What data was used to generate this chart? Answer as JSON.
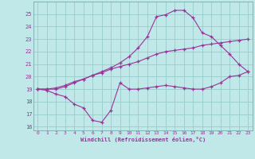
{
  "xlabel": "Windchill (Refroidissement éolien,°C)",
  "background_color": "#c0e8e8",
  "grid_color": "#98cccc",
  "line_color": "#993399",
  "xlim": [
    -0.5,
    23.5
  ],
  "ylim": [
    15.7,
    26.0
  ],
  "yticks": [
    16,
    17,
    18,
    19,
    20,
    21,
    22,
    23,
    24,
    25
  ],
  "xticks": [
    0,
    1,
    2,
    3,
    4,
    5,
    6,
    7,
    8,
    9,
    10,
    11,
    12,
    13,
    14,
    15,
    16,
    17,
    18,
    19,
    20,
    21,
    22,
    23
  ],
  "line1_x": [
    0,
    1,
    2,
    3,
    4,
    5,
    6,
    7,
    8,
    9,
    10,
    11,
    12,
    13,
    14,
    15,
    16,
    17,
    18,
    19,
    20,
    21,
    22,
    23
  ],
  "line1_y": [
    19.0,
    18.9,
    18.6,
    18.4,
    17.8,
    17.5,
    16.5,
    16.35,
    17.3,
    19.5,
    19.0,
    19.0,
    19.1,
    19.2,
    19.3,
    19.2,
    19.1,
    19.0,
    19.0,
    19.2,
    19.5,
    20.0,
    20.1,
    20.4
  ],
  "line2_x": [
    0,
    1,
    2,
    3,
    4,
    5,
    6,
    7,
    8,
    9,
    10,
    11,
    12,
    13,
    14,
    15,
    16,
    17,
    18,
    19,
    20,
    21,
    22,
    23
  ],
  "line2_y": [
    19.0,
    19.0,
    19.1,
    19.3,
    19.6,
    19.8,
    20.1,
    20.3,
    20.6,
    20.8,
    21.0,
    21.2,
    21.5,
    21.8,
    22.0,
    22.1,
    22.2,
    22.3,
    22.5,
    22.6,
    22.7,
    22.8,
    22.9,
    23.0
  ],
  "line3_x": [
    0,
    1,
    2,
    3,
    4,
    5,
    6,
    7,
    8,
    9,
    10,
    11,
    12,
    13,
    14,
    15,
    16,
    17,
    18,
    19,
    20,
    21,
    22,
    23
  ],
  "line3_y": [
    19.0,
    19.0,
    19.0,
    19.2,
    19.5,
    19.8,
    20.1,
    20.4,
    20.7,
    21.1,
    21.6,
    22.3,
    23.2,
    24.8,
    24.95,
    25.3,
    25.3,
    24.7,
    23.5,
    23.2,
    22.5,
    21.8,
    21.0,
    20.4
  ]
}
